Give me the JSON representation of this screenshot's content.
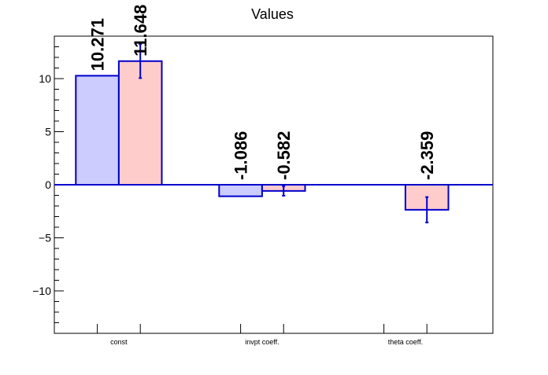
{
  "chart_data": {
    "type": "bar",
    "title": "Values",
    "xlabel": "",
    "ylabel": "",
    "categories": [
      "const",
      "invpt coeff.",
      "theta coeff."
    ],
    "ylim": [
      -14,
      14
    ],
    "yticks": [
      -10,
      -5,
      0,
      5,
      10
    ],
    "grid": false,
    "series": [
      {
        "values": [
          10.271,
          -1.086,
          null
        ],
        "errors": [
          null,
          null,
          null
        ],
        "labels": [
          "10.271",
          "-1.086",
          ""
        ],
        "fill": "#ccccff",
        "stroke": "#0000cc"
      },
      {
        "values": [
          11.648,
          -0.582,
          -2.359
        ],
        "errors": [
          1.6,
          0.45,
          1.2
        ],
        "labels": [
          "11.648",
          "-0.582",
          "-2.359"
        ],
        "fill": "#ffcccc",
        "stroke": "#0000cc"
      }
    ],
    "colors": {
      "axis": "#000000",
      "bar_stroke": "#0000cc",
      "zero_line": "#0000cc"
    }
  }
}
